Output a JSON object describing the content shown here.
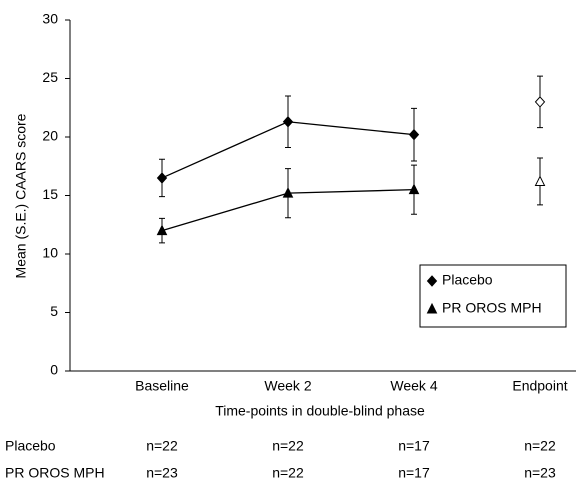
{
  "chart_data": {
    "type": "line",
    "categories": [
      "Baseline",
      "Week 2",
      "Week 4",
      "Endpoint"
    ],
    "series": [
      {
        "name": "Placebo",
        "color": "#000000",
        "marker": "diamond",
        "values": [
          16.5,
          21.3,
          20.2,
          23.0
        ],
        "errors": [
          1.6,
          2.2,
          2.25,
          2.2
        ],
        "open": [
          false,
          false,
          false,
          true
        ]
      },
      {
        "name": "PR OROS MPH",
        "color": "#000000",
        "marker": "triangle",
        "values": [
          12.0,
          15.2,
          15.5,
          16.2
        ],
        "errors": [
          1.05,
          2.1,
          2.1,
          2.0
        ],
        "open": [
          false,
          false,
          false,
          true
        ]
      }
    ],
    "ylabel": "Mean (S.E.) CAARS score",
    "xlabel": "Time-points in double-blind phase",
    "ylim": [
      0,
      30
    ],
    "yticks": [
      0,
      5,
      10,
      15,
      20,
      25,
      30
    ],
    "legend": "right",
    "sample_sizes": [
      {
        "name": "Placebo",
        "values": [
          "n=22",
          "n=22",
          "n=17",
          "n=22"
        ]
      },
      {
        "name": "PR OROS MPH",
        "values": [
          "n=23",
          "n=22",
          "n=17",
          "n=23"
        ]
      }
    ]
  }
}
